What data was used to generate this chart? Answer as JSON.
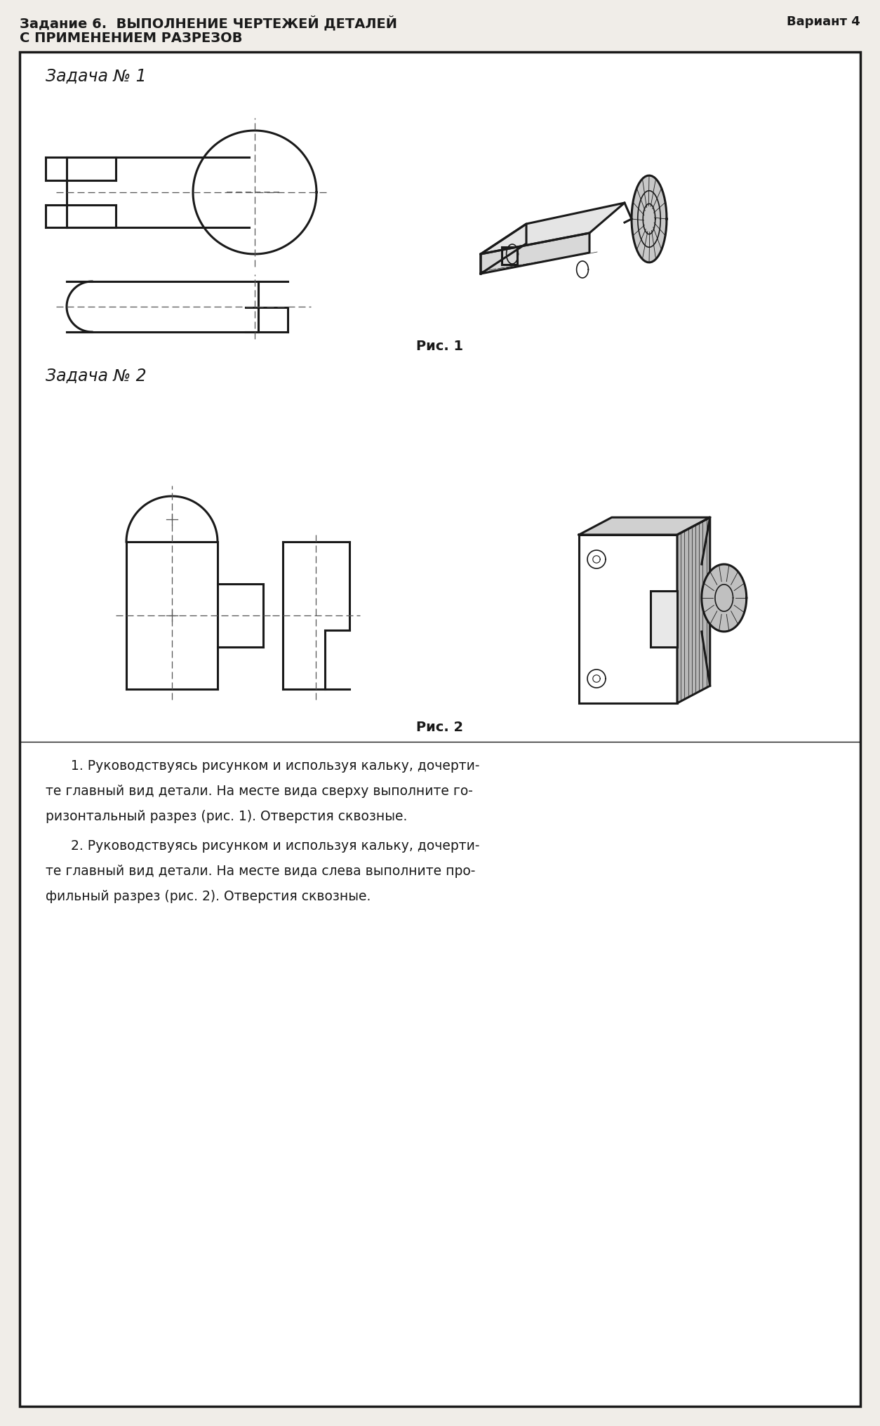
{
  "title_line1": "Задание 6.  ВЫПОЛНЕНИЕ ЧЕРТЕЖЕЙ ДЕТАЛЕЙ",
  "title_line2": "С ПРИМЕНЕНИЕМ РАЗРЕЗОВ",
  "variant": "Вариант 4",
  "zadacha1": "Задача № 1",
  "zadacha2": "Задача № 2",
  "ris1": "Рис. 1",
  "ris2": "Рис. 2",
  "text1_lines": [
    "      1. Руководствуясь рисунком и используя кальку, дочерти-",
    "те главный вид детали. На месте вида сверху выполните го-",
    "ризонтальный разрез (рис. 1). Отверстия сквозные."
  ],
  "text2_lines": [
    "      2. Руководствуясь рисунком и используя кальку, дочерти-",
    "те главный вид детали. На месте вида слева выполните про-",
    "фильный разрез (рис. 2). Отверстия сквозные."
  ],
  "bg_color": "#f0ede8",
  "line_color": "#1a1a1a",
  "cl_color": "#555555"
}
